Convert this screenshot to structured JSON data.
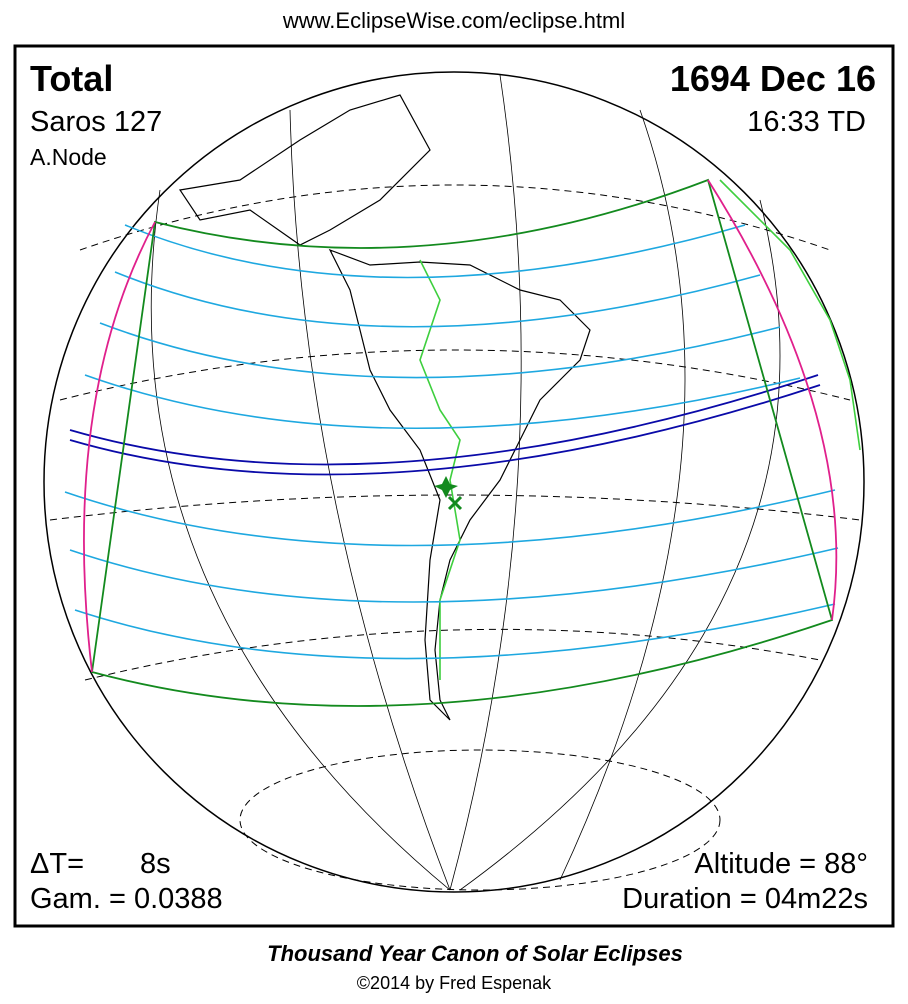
{
  "header": {
    "url": "www.EclipseWise.com/eclipse.html"
  },
  "panel": {
    "type": "Total",
    "date": "1694 Dec 16",
    "saros": "Saros 127",
    "time": "16:33 TD",
    "node": "A.Node",
    "delta_t_label": "ΔT=",
    "delta_t_value": "8s",
    "gamma": "Gam. = 0.0388",
    "altitude": "Altitude = 88°",
    "duration": "Duration = 04m22s"
  },
  "footer": {
    "title": "Thousand Year Canon of Solar Eclipses",
    "copyright": "©2014 by Fred Espenak"
  }
}
